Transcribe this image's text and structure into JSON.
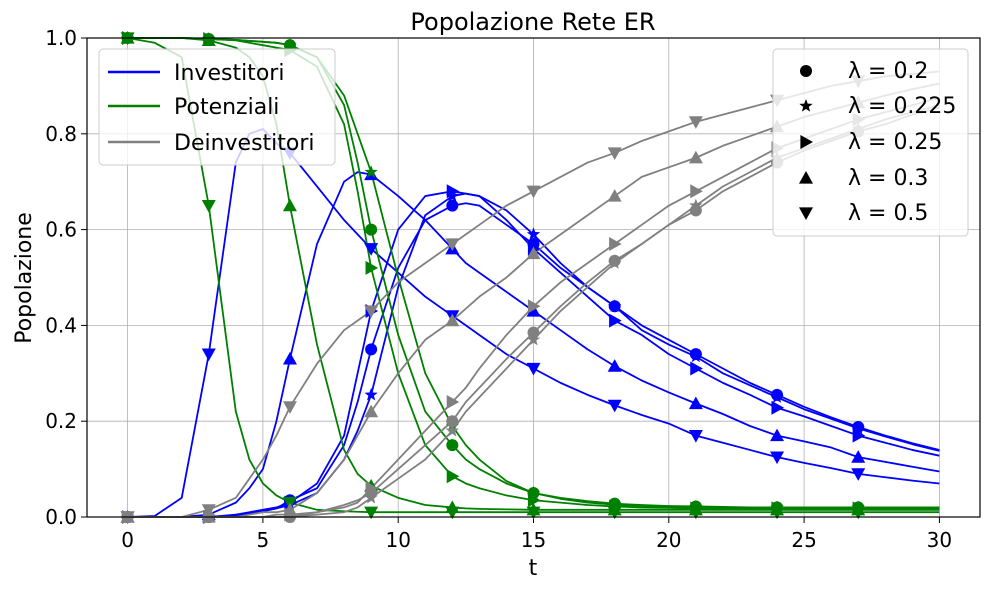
{
  "chart_data": {
    "type": "line",
    "title": "Popolazione Rete ER",
    "xlabel": "t",
    "ylabel": "Popolazione",
    "xlim": [
      -1.5,
      31.5
    ],
    "ylim": [
      0,
      1
    ],
    "xticks": [
      "0",
      "5",
      "10",
      "15",
      "20",
      "25",
      "30"
    ],
    "yticks": [
      "0.0",
      "0.2",
      "0.4",
      "0.6",
      "0.8",
      "1.0"
    ],
    "grid": true,
    "legend_groups": [
      "Investitori",
      "Potenziali",
      "Deinvestitori"
    ],
    "legend_groups_placement": "top-left",
    "legend_lambda_placement": "top-right",
    "colors": {
      "Investitori": "#0000ff",
      "Potenziali": "#008000",
      "Deinvestitori": "#808080"
    },
    "lambda_labels": [
      "λ = 0.2",
      "λ = 0.225",
      "λ = 0.25",
      "λ = 0.3",
      "λ = 0.5"
    ],
    "lambda_markers": [
      "circle",
      "star",
      "triangle-right",
      "triangle-up",
      "triangle-down"
    ],
    "marker_x": [
      0,
      3,
      6,
      9,
      12,
      15,
      18,
      21,
      24,
      27
    ],
    "x": [
      0,
      1,
      2,
      3,
      4,
      4.5,
      5,
      5.5,
      6,
      7,
      8,
      8.5,
      9,
      10,
      11,
      12,
      12.5,
      13,
      14,
      15,
      16,
      17,
      18,
      19,
      20,
      21,
      22,
      23,
      24,
      25,
      26,
      27,
      28,
      29,
      30
    ],
    "series": [
      {
        "group": "Investitori",
        "lambda": "λ = 0.5",
        "values": [
          0,
          0.002,
          0.04,
          0.34,
          0.74,
          0.8,
          0.81,
          0.78,
          0.76,
          0.69,
          0.62,
          0.59,
          0.56,
          0.51,
          0.46,
          0.42,
          0.4,
          0.38,
          0.34,
          0.31,
          0.28,
          0.255,
          0.233,
          0.213,
          0.195,
          0.17,
          0.155,
          0.14,
          0.125,
          0.113,
          0.102,
          0.09,
          0.083,
          0.076,
          0.07
        ]
      },
      {
        "group": "Investitori",
        "lambda": "λ = 0.3",
        "values": [
          0,
          0,
          0,
          0.005,
          0.03,
          0.06,
          0.1,
          0.2,
          0.33,
          0.57,
          0.7,
          0.72,
          0.715,
          0.67,
          0.62,
          0.56,
          0.53,
          0.51,
          0.47,
          0.43,
          0.39,
          0.35,
          0.315,
          0.285,
          0.26,
          0.237,
          0.215,
          0.19,
          0.17,
          0.158,
          0.145,
          0.125,
          0.115,
          0.105,
          0.095
        ]
      },
      {
        "group": "Investitori",
        "lambda": "λ = 0.25",
        "values": [
          0,
          0,
          0,
          0,
          0.005,
          0.01,
          0.015,
          0.02,
          0.03,
          0.07,
          0.17,
          0.3,
          0.43,
          0.6,
          0.67,
          0.68,
          0.675,
          0.67,
          0.62,
          0.56,
          0.51,
          0.46,
          0.41,
          0.38,
          0.34,
          0.31,
          0.28,
          0.255,
          0.228,
          0.21,
          0.19,
          0.17,
          0.155,
          0.14,
          0.128
        ]
      },
      {
        "group": "Investitori",
        "lambda": "λ = 0.225",
        "values": [
          0,
          0,
          0,
          0,
          0.003,
          0.008,
          0.012,
          0.018,
          0.025,
          0.05,
          0.12,
          0.18,
          0.255,
          0.48,
          0.63,
          0.67,
          0.675,
          0.67,
          0.64,
          0.59,
          0.53,
          0.48,
          0.44,
          0.39,
          0.36,
          0.335,
          0.3,
          0.275,
          0.25,
          0.225,
          0.205,
          0.185,
          0.168,
          0.152,
          0.138
        ]
      },
      {
        "group": "Investitori",
        "lambda": "λ = 0.2",
        "values": [
          0,
          0,
          0,
          0,
          0.003,
          0.008,
          0.012,
          0.018,
          0.035,
          0.06,
          0.15,
          0.24,
          0.35,
          0.52,
          0.62,
          0.65,
          0.655,
          0.65,
          0.61,
          0.57,
          0.52,
          0.48,
          0.44,
          0.4,
          0.37,
          0.34,
          0.31,
          0.28,
          0.255,
          0.23,
          0.208,
          0.188,
          0.17,
          0.154,
          0.14
        ]
      },
      {
        "group": "Potenziali",
        "lambda": "λ = 0.5",
        "values": [
          1,
          0.99,
          0.96,
          0.65,
          0.22,
          0.12,
          0.07,
          0.045,
          0.03,
          0.015,
          0.012,
          0.011,
          0.01,
          0.01,
          0.01,
          0.01,
          0.01,
          0.01,
          0.01,
          0.01,
          0.01,
          0.01,
          0.01,
          0.01,
          0.01,
          0.01,
          0.01,
          0.01,
          0.01,
          0.01,
          0.01,
          0.01,
          0.01,
          0.01,
          0.01
        ]
      },
      {
        "group": "Potenziali",
        "lambda": "λ = 0.3",
        "values": [
          1,
          1,
          1,
          0.995,
          0.98,
          0.96,
          0.92,
          0.82,
          0.65,
          0.36,
          0.14,
          0.09,
          0.065,
          0.04,
          0.025,
          0.02,
          0.018,
          0.017,
          0.016,
          0.015,
          0.015,
          0.015,
          0.015,
          0.015,
          0.015,
          0.015,
          0.015,
          0.015,
          0.015,
          0.015,
          0.015,
          0.015,
          0.015,
          0.015,
          0.015
        ]
      },
      {
        "group": "Potenziali",
        "lambda": "λ = 0.25",
        "values": [
          1,
          1,
          1,
          0.998,
          0.995,
          0.99,
          0.985,
          0.98,
          0.975,
          0.94,
          0.82,
          0.68,
          0.52,
          0.3,
          0.15,
          0.085,
          0.07,
          0.06,
          0.045,
          0.035,
          0.03,
          0.025,
          0.022,
          0.02,
          0.019,
          0.018,
          0.018,
          0.018,
          0.018,
          0.018,
          0.018,
          0.018,
          0.018,
          0.018,
          0.018
        ]
      },
      {
        "group": "Potenziali",
        "lambda": "λ = 0.225",
        "values": [
          1,
          1,
          1,
          0.998,
          0.996,
          0.994,
          0.992,
          0.99,
          0.985,
          0.96,
          0.88,
          0.8,
          0.72,
          0.5,
          0.3,
          0.19,
          0.15,
          0.12,
          0.075,
          0.05,
          0.038,
          0.03,
          0.026,
          0.023,
          0.021,
          0.02,
          0.02,
          0.02,
          0.02,
          0.02,
          0.02,
          0.02,
          0.02,
          0.02,
          0.02
        ]
      },
      {
        "group": "Potenziali",
        "lambda": "λ = 0.2",
        "values": [
          1,
          1,
          1,
          0.998,
          0.996,
          0.994,
          0.992,
          0.99,
          0.985,
          0.96,
          0.86,
          0.74,
          0.6,
          0.38,
          0.22,
          0.15,
          0.12,
          0.1,
          0.07,
          0.05,
          0.04,
          0.033,
          0.028,
          0.025,
          0.023,
          0.022,
          0.021,
          0.02,
          0.02,
          0.02,
          0.02,
          0.02,
          0.02,
          0.02,
          0.02
        ]
      },
      {
        "group": "Deinvestitori",
        "lambda": "λ = 0.5",
        "values": [
          0,
          0,
          0,
          0.015,
          0.04,
          0.08,
          0.12,
          0.17,
          0.23,
          0.32,
          0.39,
          0.41,
          0.43,
          0.49,
          0.53,
          0.57,
          0.59,
          0.61,
          0.65,
          0.68,
          0.71,
          0.74,
          0.76,
          0.785,
          0.805,
          0.825,
          0.84,
          0.855,
          0.87,
          0.885,
          0.9,
          0.91,
          0.92,
          0.925,
          0.93
        ]
      },
      {
        "group": "Deinvestitori",
        "lambda": "λ = 0.3",
        "values": [
          0,
          0,
          0,
          0,
          0,
          0.005,
          0.01,
          0.01,
          0.015,
          0.05,
          0.12,
          0.17,
          0.22,
          0.3,
          0.37,
          0.41,
          0.435,
          0.46,
          0.5,
          0.55,
          0.59,
          0.63,
          0.67,
          0.71,
          0.73,
          0.75,
          0.775,
          0.795,
          0.815,
          0.835,
          0.85,
          0.865,
          0.88,
          0.893,
          0.905
        ]
      },
      {
        "group": "Deinvestitori",
        "lambda": "λ = 0.25",
        "values": [
          0,
          0,
          0,
          0,
          0,
          0,
          0,
          0.005,
          0.005,
          0.01,
          0.02,
          0.03,
          0.06,
          0.12,
          0.18,
          0.24,
          0.27,
          0.31,
          0.38,
          0.44,
          0.49,
          0.53,
          0.57,
          0.61,
          0.65,
          0.68,
          0.71,
          0.74,
          0.77,
          0.79,
          0.81,
          0.83,
          0.845,
          0.86,
          0.875
        ]
      },
      {
        "group": "Deinvestitori",
        "lambda": "λ = 0.225",
        "values": [
          0,
          0,
          0,
          0,
          0,
          0,
          0,
          0,
          0,
          0.005,
          0.01,
          0.02,
          0.04,
          0.08,
          0.12,
          0.18,
          0.22,
          0.25,
          0.31,
          0.37,
          0.43,
          0.48,
          0.53,
          0.57,
          0.61,
          0.65,
          0.69,
          0.72,
          0.75,
          0.77,
          0.79,
          0.81,
          0.83,
          0.845,
          0.86
        ]
      },
      {
        "group": "Deinvestitori",
        "lambda": "λ = 0.2",
        "values": [
          0,
          0,
          0,
          0,
          0,
          0,
          0,
          0,
          0,
          0.01,
          0.025,
          0.035,
          0.05,
          0.1,
          0.15,
          0.2,
          0.24,
          0.27,
          0.33,
          0.385,
          0.44,
          0.49,
          0.535,
          0.57,
          0.61,
          0.64,
          0.68,
          0.71,
          0.74,
          0.765,
          0.785,
          0.805,
          0.82,
          0.84,
          0.855
        ]
      }
    ]
  }
}
